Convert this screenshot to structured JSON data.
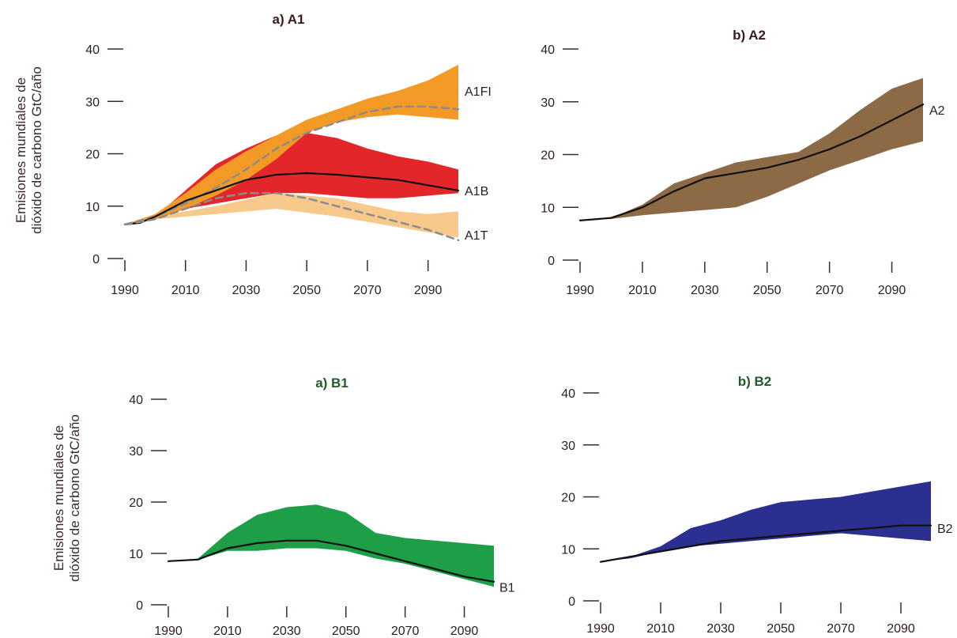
{
  "chart_data": [
    {
      "type": "area",
      "title": "a) A1",
      "ylabel_lines": [
        "Emisiones mundiales de",
        "dióxido de carbono GtC/año"
      ],
      "ylim": [
        0,
        40
      ],
      "xlim": [
        1990,
        2100
      ],
      "yticks": [
        "0",
        "10",
        "20",
        "30",
        "40"
      ],
      "xticks": [
        "1990",
        "2010",
        "2030",
        "2050",
        "2070",
        "2090"
      ],
      "bands": [
        {
          "name": "A1T",
          "color": "#f7c98b",
          "x": [
            1990,
            2000,
            2020,
            2040,
            2060,
            2080,
            2090,
            2100
          ],
          "upper": [
            6.5,
            8,
            10,
            12.5,
            11.5,
            9,
            8.5,
            9
          ],
          "lower": [
            6.5,
            7.5,
            8.5,
            9.5,
            8,
            6,
            5,
            4
          ]
        },
        {
          "name": "A1B",
          "color": "#e3262a",
          "x": [
            1990,
            2000,
            2010,
            2020,
            2030,
            2040,
            2050,
            2060,
            2070,
            2080,
            2090,
            2100
          ],
          "upper": [
            6.5,
            8,
            13,
            18,
            21,
            23.5,
            24,
            23,
            21,
            19.5,
            18.5,
            17
          ],
          "lower": [
            6.5,
            7.5,
            9.5,
            10.5,
            11.5,
            12.5,
            12.5,
            12,
            11.5,
            11.5,
            12,
            12.5
          ]
        },
        {
          "name": "A1FI",
          "color": "#f39a26",
          "x": [
            1990,
            2000,
            2010,
            2020,
            2030,
            2040,
            2050,
            2060,
            2070,
            2080,
            2090,
            2100
          ],
          "upper": [
            6.5,
            8.5,
            12.5,
            17,
            20.5,
            23.5,
            26.5,
            28.5,
            30.5,
            32,
            34,
            37
          ],
          "lower": [
            6.5,
            7.5,
            9.5,
            12,
            15,
            19,
            24,
            26,
            27,
            27.5,
            27,
            26.5
          ]
        }
      ],
      "lines": [
        {
          "name": "A1FI",
          "style": "dashed",
          "color": "#8c8c8c",
          "x": [
            1990,
            2000,
            2010,
            2020,
            2030,
            2040,
            2050,
            2060,
            2070,
            2080,
            2090,
            2100
          ],
          "y": [
            6.5,
            8,
            10.5,
            13.5,
            17,
            21,
            24,
            26,
            28,
            29,
            29,
            28.5
          ]
        },
        {
          "name": "A1B",
          "style": "solid",
          "color": "#111111",
          "x": [
            1990,
            1995,
            2000,
            2010,
            2020,
            2030,
            2040,
            2050,
            2060,
            2070,
            2080,
            2090,
            2100
          ],
          "y": [
            6.5,
            6.8,
            8,
            11,
            13,
            15,
            16,
            16.3,
            16,
            15.5,
            15,
            14,
            13
          ]
        },
        {
          "name": "A1T",
          "style": "dashed",
          "color": "#8c8c8c",
          "x": [
            1990,
            2000,
            2010,
            2020,
            2030,
            2040,
            2050,
            2060,
            2070,
            2080,
            2090,
            2100
          ],
          "y": [
            6.5,
            7.5,
            9.5,
            11.5,
            12.5,
            12.5,
            11.5,
            10,
            8.5,
            7,
            5.5,
            3.5
          ]
        }
      ],
      "labels": [
        {
          "text": "A1FI",
          "y": 32
        },
        {
          "text": "A1B",
          "y": 13
        },
        {
          "text": "A1T",
          "y": 4.5
        }
      ]
    },
    {
      "type": "area",
      "title": "b) A2",
      "ylim": [
        0,
        40
      ],
      "xlim": [
        1990,
        2100
      ],
      "yticks": [
        "0",
        "10",
        "20",
        "30",
        "40"
      ],
      "xticks": [
        "1990",
        "2010",
        "2030",
        "2050",
        "2070",
        "2090"
      ],
      "bands": [
        {
          "name": "A2",
          "color": "#8c6a45",
          "x": [
            1990,
            2000,
            2010,
            2020,
            2030,
            2040,
            2050,
            2060,
            2070,
            2080,
            2090,
            2100
          ],
          "upper": [
            7.5,
            8,
            10.5,
            14.5,
            16.5,
            18.5,
            19.5,
            20.5,
            24,
            28.5,
            32.5,
            34.5
          ],
          "lower": [
            7.5,
            7.8,
            8.5,
            9,
            9.5,
            10,
            12,
            14.5,
            17,
            19,
            21,
            22.5
          ]
        }
      ],
      "lines": [
        {
          "name": "A2",
          "style": "solid",
          "color": "#111111",
          "x": [
            1990,
            2000,
            2010,
            2020,
            2030,
            2040,
            2050,
            2060,
            2070,
            2080,
            2090,
            2100
          ],
          "y": [
            7.5,
            8,
            10,
            13,
            15.5,
            16.5,
            17.5,
            19,
            21,
            23.5,
            26.5,
            29.5
          ]
        }
      ],
      "labels": [
        {
          "text": "A2",
          "y": 28.5
        }
      ]
    },
    {
      "type": "area",
      "title": "a) B1",
      "ylabel_lines": [
        "Emisiones mundiales de",
        "dióxido de carbono GtC/año"
      ],
      "ylim": [
        0,
        40
      ],
      "xlim": [
        1990,
        2100
      ],
      "yticks": [
        "0",
        "10",
        "20",
        "30",
        "40"
      ],
      "xticks": [
        "1990",
        "2010",
        "2030",
        "2050",
        "2070",
        "2090"
      ],
      "bands": [
        {
          "name": "B1",
          "color": "#1e9e46",
          "x": [
            1990,
            2000,
            2010,
            2020,
            2030,
            2040,
            2050,
            2060,
            2070,
            2080,
            2090,
            2100
          ],
          "upper": [
            8.5,
            9,
            14,
            17.5,
            19,
            19.5,
            18,
            14,
            13,
            12.5,
            12,
            11.5
          ],
          "lower": [
            8.5,
            8.8,
            10.5,
            10.5,
            11,
            11,
            10.5,
            9,
            8,
            6.5,
            5,
            3.5
          ]
        }
      ],
      "lines": [
        {
          "name": "B1",
          "style": "solid",
          "color": "#111111",
          "x": [
            1990,
            2000,
            2010,
            2020,
            2030,
            2040,
            2050,
            2060,
            2070,
            2080,
            2090,
            2100
          ],
          "y": [
            8.5,
            8.8,
            11,
            12,
            12.5,
            12.5,
            11.5,
            10,
            8.5,
            7,
            5.5,
            4.5
          ]
        }
      ],
      "labels": [
        {
          "text": "B1",
          "y": 3.5
        }
      ]
    },
    {
      "type": "area",
      "title": "b) B2",
      "ylim": [
        0,
        40
      ],
      "xlim": [
        1990,
        2100
      ],
      "yticks": [
        "0",
        "10",
        "20",
        "30",
        "40"
      ],
      "xticks": [
        "1990",
        "2010",
        "2030",
        "2050",
        "2070",
        "2090"
      ],
      "bands": [
        {
          "name": "B2",
          "color": "#2b2f8f",
          "x": [
            1990,
            2000,
            2010,
            2020,
            2030,
            2040,
            2050,
            2060,
            2070,
            2080,
            2090,
            2100
          ],
          "upper": [
            7.5,
            8.5,
            10.5,
            14,
            15.5,
            17.5,
            19,
            19.5,
            20,
            21,
            22,
            23
          ],
          "lower": [
            7.5,
            8.2,
            9.5,
            10.5,
            11,
            11.5,
            12,
            12.5,
            13,
            12.5,
            12,
            11.5
          ]
        }
      ],
      "lines": [
        {
          "name": "B2",
          "style": "solid",
          "color": "#111111",
          "x": [
            1990,
            2000,
            2010,
            2020,
            2030,
            2040,
            2050,
            2060,
            2070,
            2080,
            2090,
            2100
          ],
          "y": [
            7.5,
            8.5,
            9.5,
            10.5,
            11.5,
            12,
            12.5,
            13,
            13.5,
            14,
            14.5,
            14.5
          ]
        }
      ],
      "labels": [
        {
          "text": "B2",
          "y": 14
        }
      ]
    }
  ]
}
